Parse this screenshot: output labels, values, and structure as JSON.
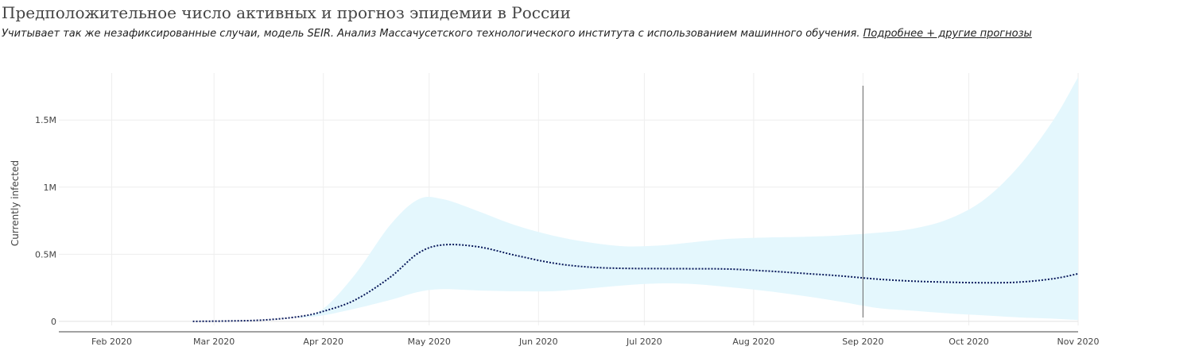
{
  "header": {
    "title": "Предположительное число активных и прогноз эпидемии в России",
    "subtitle": "Учитывает так же незафиксированные случаи, модель SEIR. Анализ Массачусетского технологического института с использованием машинного обучения.",
    "link_label": "Подробнее + другие прогнозы"
  },
  "chart_data": {
    "type": "area",
    "title": "Предположительное число активных и прогноз эпидемии в России",
    "ylabel": "Currently infected",
    "xlabel": "",
    "x_ticks": [
      "2020-02-01",
      "2020-03-01",
      "2020-04-01",
      "2020-05-01",
      "2020-06-01",
      "2020-07-01",
      "2020-08-01",
      "2020-09-01",
      "2020-10-01",
      "2020-11-01"
    ],
    "x_tick_labels": [
      "Feb 2020",
      "Mar 2020",
      "Apr 2020",
      "May 2020",
      "Jun 2020",
      "Jul 2020",
      "Aug 2020",
      "Sep 2020",
      "Oct 2020",
      "Nov 2020"
    ],
    "y_ticks": [
      0,
      500000,
      1000000,
      1500000
    ],
    "y_tick_labels": [
      "0",
      "0.5M",
      "1M",
      "1.5M"
    ],
    "xlim": [
      "2020-01-17",
      "2020-11-01"
    ],
    "ylim": [
      -30000,
      1850000
    ],
    "grid": true,
    "vertical_marker": "2020-09-01",
    "colors": {
      "band": "#e4f7fd",
      "line": "#0a1a5c",
      "grid": "#eeeeee",
      "marker": "#666666"
    },
    "series": [
      {
        "x": [
          "2020-02-24",
          "2020-03-05",
          "2020-03-15",
          "2020-03-25",
          "2020-04-01",
          "2020-04-10",
          "2020-04-20",
          "2020-04-28",
          "2020-05-05",
          "2020-05-15",
          "2020-05-25",
          "2020-06-05",
          "2020-06-15",
          "2020-06-25",
          "2020-07-05",
          "2020-07-15",
          "2020-07-25",
          "2020-08-05",
          "2020-08-15",
          "2020-08-25",
          "2020-09-05",
          "2020-09-15",
          "2020-09-25",
          "2020-10-05",
          "2020-10-15",
          "2020-10-25",
          "2020-11-01"
        ],
        "values": [
          0,
          3000,
          10000,
          35000,
          75000,
          160000,
          330000,
          510000,
          570000,
          555000,
          495000,
          435000,
          405000,
          395000,
          393000,
          392000,
          390000,
          375000,
          358000,
          340000,
          315000,
          300000,
          292000,
          288000,
          292000,
          318000,
          355000
        ],
        "line_style": "dotted"
      },
      {
        "name": "upper",
        "x": [
          "2020-03-25",
          "2020-04-01",
          "2020-04-10",
          "2020-04-20",
          "2020-04-28",
          "2020-05-05",
          "2020-05-15",
          "2020-05-25",
          "2020-06-05",
          "2020-06-15",
          "2020-06-25",
          "2020-07-05",
          "2020-07-15",
          "2020-07-25",
          "2020-08-05",
          "2020-08-15",
          "2020-08-25",
          "2020-09-05",
          "2020-09-15",
          "2020-09-25",
          "2020-10-05",
          "2020-10-15",
          "2020-10-25",
          "2020-11-01"
        ],
        "values": [
          30000,
          95000,
          350000,
          720000,
          910000,
          910000,
          820000,
          720000,
          640000,
          590000,
          560000,
          565000,
          590000,
          615000,
          625000,
          630000,
          640000,
          660000,
          690000,
          760000,
          900000,
          1150000,
          1500000,
          1820000
        ]
      },
      {
        "name": "lower",
        "x": [
          "2020-03-25",
          "2020-04-01",
          "2020-04-10",
          "2020-04-20",
          "2020-04-28",
          "2020-05-05",
          "2020-05-15",
          "2020-05-25",
          "2020-06-05",
          "2020-06-15",
          "2020-06-25",
          "2020-07-05",
          "2020-07-15",
          "2020-07-25",
          "2020-08-05",
          "2020-08-15",
          "2020-08-25",
          "2020-09-05",
          "2020-09-15",
          "2020-09-25",
          "2020-10-05",
          "2020-10-15",
          "2020-10-25",
          "2020-11-01"
        ],
        "values": [
          25000,
          45000,
          95000,
          160000,
          220000,
          240000,
          230000,
          225000,
          225000,
          245000,
          268000,
          283000,
          278000,
          255000,
          225000,
          190000,
          150000,
          100000,
          80000,
          60000,
          45000,
          30000,
          20000,
          10000
        ]
      }
    ]
  }
}
